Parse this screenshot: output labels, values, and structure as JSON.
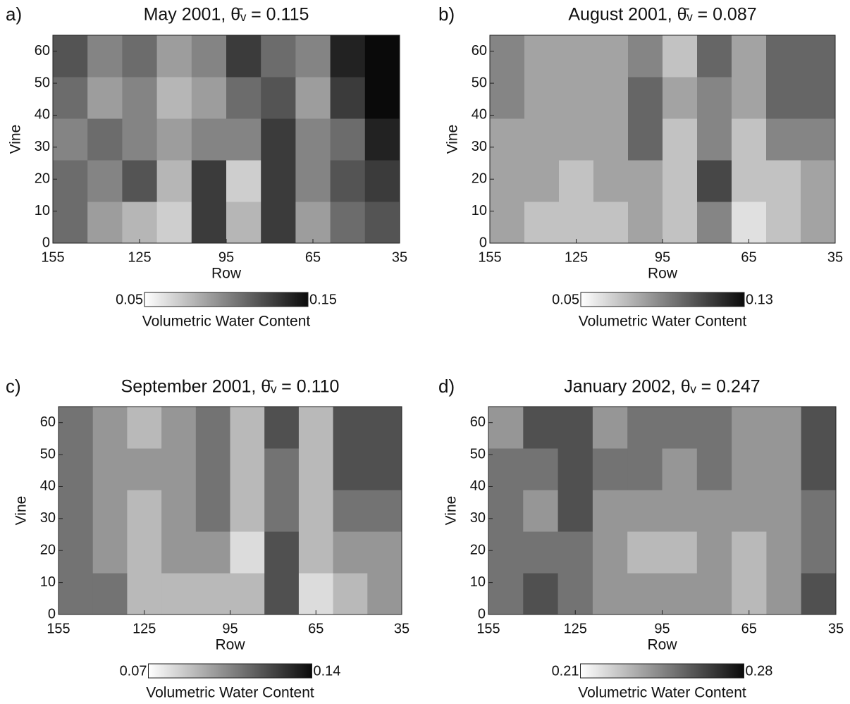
{
  "chart_data": [
    {
      "type": "heatmap",
      "panel": "a)",
      "title": "May 2001, θ̄ᵥ = 0.115",
      "x_label": "Row",
      "y_label": "Vine",
      "xlim": [
        155,
        35
      ],
      "xticks": [
        155,
        125,
        95,
        65,
        35
      ],
      "ylim": [
        0,
        65
      ],
      "yticks": [
        0,
        10,
        20,
        30,
        40,
        50,
        60
      ],
      "xbins": [
        155,
        143,
        131,
        119,
        107,
        95,
        83,
        71,
        59,
        47,
        35
      ],
      "ybins": [
        0,
        13,
        26,
        39,
        52,
        65
      ],
      "z": [
        [
          0.11,
          0.09,
          0.08,
          0.07,
          0.13,
          0.08,
          0.13,
          0.09,
          0.11,
          0.12
        ],
        [
          0.11,
          0.1,
          0.12,
          0.08,
          0.13,
          0.07,
          0.13,
          0.1,
          0.12,
          0.13
        ],
        [
          0.1,
          0.11,
          0.1,
          0.09,
          0.1,
          0.1,
          0.13,
          0.1,
          0.11,
          0.14
        ],
        [
          0.11,
          0.09,
          0.1,
          0.08,
          0.09,
          0.11,
          0.12,
          0.09,
          0.13,
          0.15
        ],
        [
          0.12,
          0.1,
          0.11,
          0.09,
          0.1,
          0.13,
          0.11,
          0.1,
          0.14,
          0.15
        ]
      ],
      "clim": [
        0.05,
        0.15
      ],
      "colorbar_label": "Volumetric Water Content"
    },
    {
      "type": "heatmap",
      "panel": "b)",
      "title": "August 2001, θ̄ᵥ = 0.087",
      "x_label": "Row",
      "y_label": "Vine",
      "xlim": [
        155,
        35
      ],
      "xticks": [
        155,
        125,
        95,
        65,
        35
      ],
      "ylim": [
        0,
        65
      ],
      "yticks": [
        0,
        10,
        20,
        30,
        40,
        50,
        60
      ],
      "xbins": [
        155,
        143,
        131,
        119,
        107,
        95,
        83,
        71,
        59,
        47,
        35
      ],
      "ybins": [
        0,
        13,
        26,
        39,
        52,
        65
      ],
      "z": [
        [
          0.08,
          0.07,
          0.07,
          0.07,
          0.08,
          0.07,
          0.09,
          0.06,
          0.07,
          0.08
        ],
        [
          0.08,
          0.08,
          0.07,
          0.08,
          0.08,
          0.07,
          0.11,
          0.07,
          0.07,
          0.08
        ],
        [
          0.08,
          0.08,
          0.08,
          0.08,
          0.1,
          0.07,
          0.09,
          0.07,
          0.09,
          0.09
        ],
        [
          0.09,
          0.08,
          0.08,
          0.08,
          0.1,
          0.08,
          0.09,
          0.08,
          0.1,
          0.1
        ],
        [
          0.09,
          0.08,
          0.08,
          0.08,
          0.09,
          0.07,
          0.1,
          0.08,
          0.1,
          0.1
        ]
      ],
      "clim": [
        0.05,
        0.13
      ],
      "colorbar_label": "Volumetric Water Content"
    },
    {
      "type": "heatmap",
      "panel": "c)",
      "title": "September 2001, θ̄ᵥ = 0.110",
      "x_label": "Row",
      "y_label": "Vine",
      "xlim": [
        155,
        35
      ],
      "xticks": [
        155,
        125,
        95,
        65,
        35
      ],
      "ylim": [
        0,
        65
      ],
      "yticks": [
        0,
        10,
        20,
        30,
        40,
        50,
        60
      ],
      "xbins": [
        155,
        143,
        131,
        119,
        107,
        95,
        83,
        71,
        59,
        47,
        35
      ],
      "ybins": [
        0,
        13,
        26,
        39,
        52,
        65
      ],
      "z": [
        [
          0.11,
          0.11,
          0.09,
          0.09,
          0.09,
          0.09,
          0.12,
          0.08,
          0.09,
          0.1
        ],
        [
          0.11,
          0.1,
          0.09,
          0.1,
          0.1,
          0.08,
          0.12,
          0.09,
          0.1,
          0.1
        ],
        [
          0.11,
          0.1,
          0.09,
          0.1,
          0.11,
          0.09,
          0.11,
          0.09,
          0.11,
          0.11
        ],
        [
          0.11,
          0.1,
          0.1,
          0.1,
          0.11,
          0.09,
          0.11,
          0.09,
          0.12,
          0.12
        ],
        [
          0.11,
          0.1,
          0.09,
          0.1,
          0.11,
          0.09,
          0.12,
          0.09,
          0.12,
          0.12
        ]
      ],
      "clim": [
        0.07,
        0.14
      ],
      "colorbar_label": "Volumetric Water Content"
    },
    {
      "type": "heatmap",
      "panel": "d)",
      "title": "January 2002, θᵥ = 0.247",
      "x_label": "Row",
      "y_label": "Vine",
      "xlim": [
        155,
        35
      ],
      "xticks": [
        155,
        125,
        95,
        65,
        35
      ],
      "ylim": [
        0,
        65
      ],
      "yticks": [
        0,
        10,
        20,
        30,
        40,
        50,
        60
      ],
      "xbins": [
        155,
        143,
        131,
        119,
        107,
        95,
        83,
        71,
        59,
        47,
        35
      ],
      "ybins": [
        0,
        13,
        26,
        39,
        52,
        65
      ],
      "z": [
        [
          0.25,
          0.26,
          0.25,
          0.24,
          0.24,
          0.24,
          0.24,
          0.23,
          0.24,
          0.26
        ],
        [
          0.25,
          0.25,
          0.25,
          0.24,
          0.23,
          0.23,
          0.24,
          0.23,
          0.24,
          0.25
        ],
        [
          0.25,
          0.24,
          0.26,
          0.24,
          0.24,
          0.24,
          0.24,
          0.24,
          0.24,
          0.25
        ],
        [
          0.25,
          0.25,
          0.26,
          0.25,
          0.25,
          0.24,
          0.25,
          0.24,
          0.24,
          0.26
        ],
        [
          0.24,
          0.26,
          0.26,
          0.24,
          0.25,
          0.25,
          0.25,
          0.24,
          0.24,
          0.26
        ]
      ],
      "clim": [
        0.21,
        0.28
      ],
      "colorbar_label": "Volumetric Water Content"
    }
  ]
}
